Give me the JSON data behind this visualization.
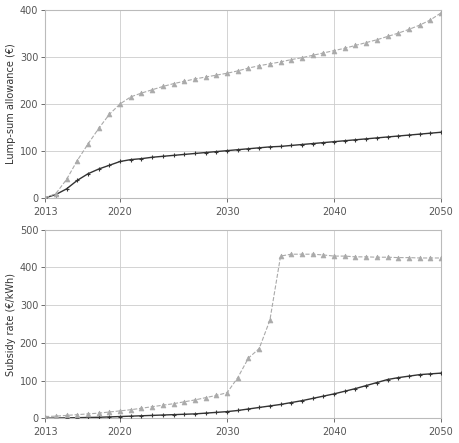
{
  "years": [
    2013,
    2014,
    2015,
    2016,
    2017,
    2018,
    2019,
    2020,
    2021,
    2022,
    2023,
    2024,
    2025,
    2026,
    2027,
    2028,
    2029,
    2030,
    2031,
    2032,
    2033,
    2034,
    2035,
    2036,
    2037,
    2038,
    2039,
    2040,
    2041,
    2042,
    2043,
    2044,
    2045,
    2046,
    2047,
    2048,
    2049,
    2050
  ],
  "lump_sum_dark": [
    1,
    8,
    20,
    38,
    52,
    62,
    70,
    78,
    82,
    84,
    87,
    89,
    91,
    93,
    95,
    97,
    99,
    101,
    103,
    105,
    107,
    109,
    110,
    112,
    114,
    116,
    118,
    120,
    122,
    124,
    126,
    128,
    130,
    132,
    134,
    136,
    138,
    140
  ],
  "lump_sum_light": [
    1,
    10,
    40,
    80,
    115,
    148,
    178,
    200,
    215,
    223,
    230,
    237,
    243,
    248,
    253,
    257,
    261,
    265,
    270,
    276,
    281,
    285,
    289,
    294,
    298,
    303,
    308,
    313,
    318,
    324,
    330,
    336,
    343,
    350,
    358,
    367,
    378,
    393
  ],
  "subsidy_dark": [
    0.5,
    1,
    1.5,
    2,
    2.5,
    3,
    4,
    5,
    6,
    7,
    8,
    9,
    10,
    11,
    12,
    14,
    16,
    18,
    21,
    25,
    29,
    33,
    37,
    42,
    47,
    53,
    59,
    65,
    72,
    79,
    87,
    95,
    103,
    108,
    112,
    116,
    118,
    120
  ],
  "subsidy_light": [
    5,
    6,
    8,
    10,
    12,
    14,
    17,
    20,
    23,
    27,
    31,
    35,
    39,
    44,
    49,
    55,
    61,
    68,
    108,
    160,
    185,
    260,
    430,
    435,
    435,
    435,
    433,
    430,
    430,
    428,
    428,
    427,
    427,
    426,
    426,
    425,
    425,
    425
  ],
  "lump_sum_ylim": [
    0,
    400
  ],
  "subsidy_ylim": [
    0,
    500
  ],
  "xlim": [
    2013,
    2050
  ],
  "lump_ylabel": "Lump-sum allowance (€)",
  "subsidy_ylabel": "Subsidy rate (€/kWh)",
  "dark_color": "#333333",
  "light_color": "#aaaaaa",
  "bg_color": "#ffffff",
  "grid_color": "#cccccc",
  "xticks": [
    2013,
    2020,
    2030,
    2040,
    2050
  ],
  "lump_yticks": [
    0,
    100,
    200,
    300,
    400
  ],
  "subsidy_yticks": [
    0,
    100,
    200,
    300,
    400,
    500
  ]
}
